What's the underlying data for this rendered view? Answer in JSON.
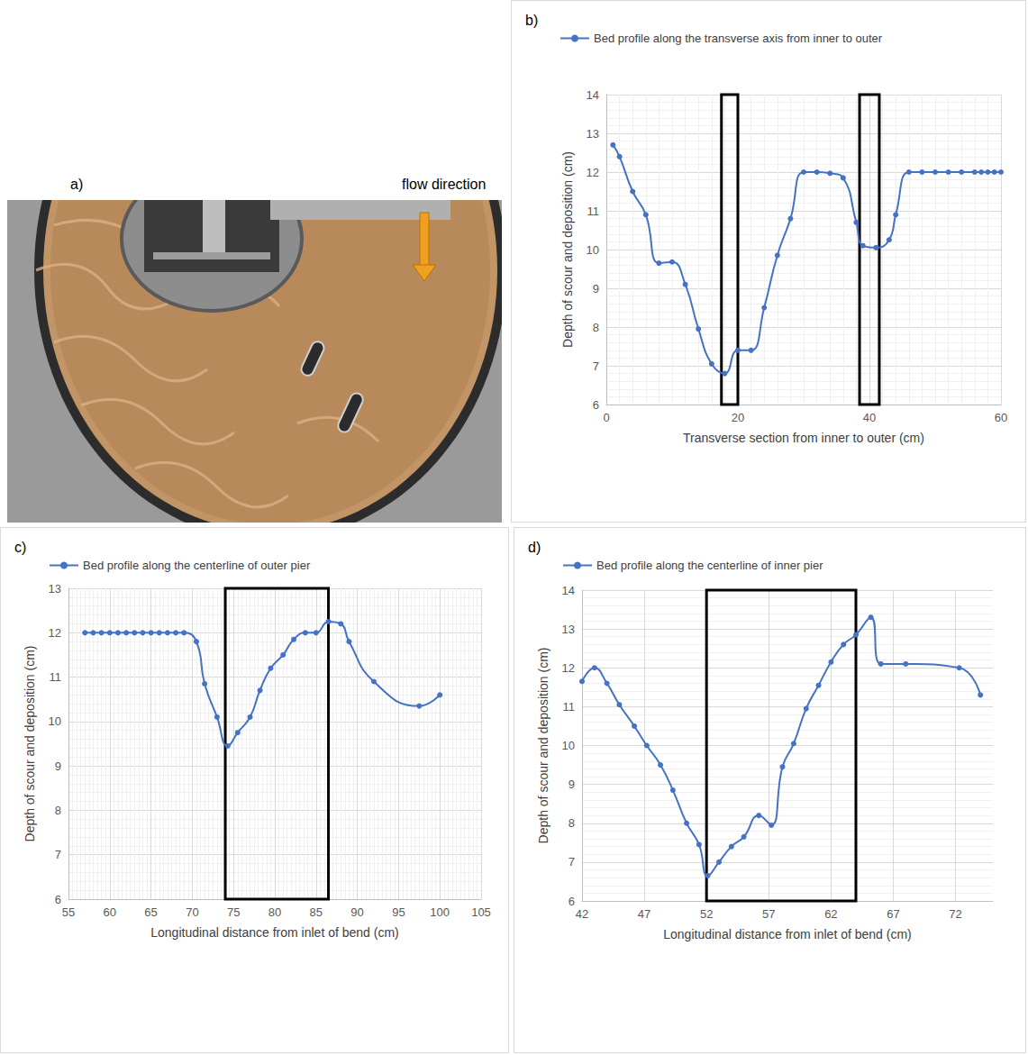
{
  "photo_panel": {
    "panel_label": "a)",
    "annotation": "flow direction"
  },
  "chart_data": [
    {
      "type": "line",
      "panel_label": "b)",
      "x_label": "Transverse section from inner to outer (cm)",
      "y_label": "Depth of scour and deposition (cm)",
      "x": [
        1,
        2,
        4,
        6,
        8,
        10,
        12,
        14,
        16,
        18,
        20,
        22,
        24,
        26,
        28,
        30,
        32,
        34,
        36,
        38,
        39,
        41,
        43,
        44,
        46,
        48,
        50,
        52,
        54,
        56,
        57,
        58,
        59,
        60
      ],
      "series": [
        {
          "name": "Bed profile along the transverse axis from inner to outer",
          "color": "#4472c4",
          "marker": "circle",
          "values": [
            12.7,
            12.4,
            11.5,
            10.9,
            9.65,
            9.68,
            9.1,
            7.95,
            7.05,
            6.8,
            7.4,
            7.4,
            8.5,
            9.85,
            10.8,
            12.0,
            12.0,
            11.97,
            11.85,
            10.7,
            10.1,
            10.05,
            10.25,
            10.9,
            12.0,
            12.0,
            12.0,
            12.0,
            12.0,
            12.0,
            12.0,
            12.0,
            12.0,
            12.0
          ]
        }
      ],
      "highlight_x_ranges": [
        [
          17.5,
          20
        ],
        [
          38.5,
          41.5
        ]
      ],
      "xlim": [
        0,
        60
      ],
      "xticks": [
        0,
        20,
        40,
        60
      ],
      "ylim": [
        6,
        14
      ],
      "yticks": [
        6,
        7,
        8,
        9,
        10,
        11,
        12,
        13,
        14
      ],
      "grid": true,
      "legend": "top-left"
    },
    {
      "type": "line",
      "panel_label": "c)",
      "x_label": "Longitudinal distance from inlet of bend (cm)",
      "y_label": "Depth of scour and deposition (cm)",
      "x": [
        57,
        58,
        59,
        60,
        61,
        62,
        63,
        64,
        65,
        66,
        67,
        68,
        69,
        70.5,
        71.5,
        73,
        74.3,
        75.5,
        77,
        78.2,
        79.5,
        81,
        82.3,
        83.7,
        85,
        86.5,
        88,
        89,
        92,
        97.5,
        100
      ],
      "series": [
        {
          "name": "Bed profile along the centerline of outer pier",
          "color": "#4472c4",
          "marker": "circle",
          "values": [
            12.0,
            12.0,
            12.0,
            12.0,
            12.0,
            12.0,
            12.0,
            12.0,
            12.0,
            12.0,
            12.0,
            12.0,
            12.0,
            11.8,
            10.85,
            10.1,
            9.45,
            9.75,
            10.1,
            10.7,
            11.2,
            11.5,
            11.85,
            12.0,
            12.0,
            12.25,
            12.2,
            11.8,
            10.9,
            10.35,
            10.6
          ]
        }
      ],
      "highlight_x_ranges": [
        [
          74,
          86.5
        ]
      ],
      "xlim": [
        55,
        105
      ],
      "xticks": [
        55,
        60,
        65,
        70,
        75,
        80,
        85,
        90,
        95,
        100,
        105
      ],
      "ylim": [
        6,
        13
      ],
      "yticks": [
        6,
        7,
        8,
        9,
        10,
        11,
        12,
        13
      ],
      "grid": true,
      "legend": "top-left"
    },
    {
      "type": "line",
      "panel_label": "d)",
      "x_label": "Longitudinal distance from inlet of bend (cm)",
      "y_label": "Depth of scour and deposition (cm)",
      "x": [
        42,
        43,
        44,
        45,
        46.2,
        47.2,
        48.3,
        49.3,
        50.4,
        51.4,
        52.1,
        53,
        54,
        55,
        56.2,
        57.2,
        58.1,
        59,
        60,
        61,
        62,
        63,
        64,
        65.2,
        66,
        68,
        72.3,
        74
      ],
      "series": [
        {
          "name": "Bed profile along the centerline of inner pier",
          "color": "#4472c4",
          "marker": "circle",
          "values": [
            11.65,
            12.0,
            11.6,
            11.05,
            10.5,
            10.0,
            9.5,
            8.85,
            8.0,
            7.45,
            6.65,
            7.0,
            7.4,
            7.65,
            8.2,
            7.95,
            9.45,
            10.05,
            10.95,
            11.55,
            12.15,
            12.6,
            12.85,
            13.3,
            12.1,
            12.1,
            12.0,
            11.3
          ]
        }
      ],
      "highlight_x_ranges": [
        [
          52,
          64
        ]
      ],
      "xlim": [
        42,
        75
      ],
      "xticks": [
        42,
        47,
        52,
        57,
        62,
        67,
        72
      ],
      "ylim": [
        6,
        14
      ],
      "yticks": [
        6,
        7,
        8,
        9,
        10,
        11,
        12,
        13,
        14
      ],
      "grid": true,
      "legend": "top-left"
    }
  ]
}
